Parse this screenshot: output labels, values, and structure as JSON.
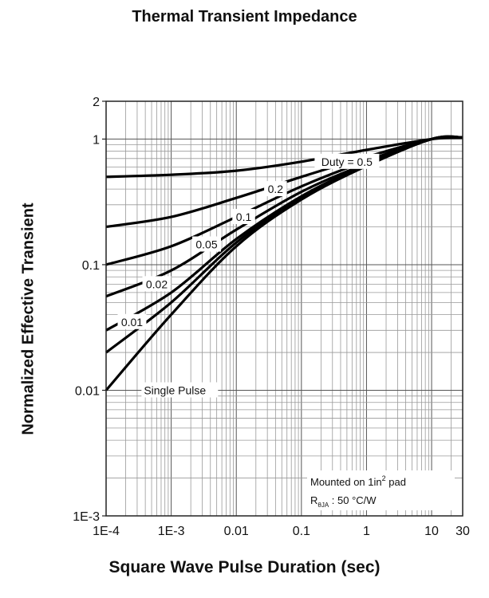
{
  "chart_data": {
    "type": "line",
    "title": "Thermal Transient Impedance",
    "xlabel": "Square Wave Pulse Duration (sec)",
    "ylabel": "Normalized Effective Transient",
    "x_scale": "log",
    "y_scale": "log",
    "xlim": [
      0.0001,
      30
    ],
    "ylim": [
      0.001,
      2
    ],
    "grid": true,
    "x_ticks": [
      {
        "value": 0.0001,
        "label": "1E-4"
      },
      {
        "value": 0.001,
        "label": "1E-3"
      },
      {
        "value": 0.01,
        "label": "0.01"
      },
      {
        "value": 0.1,
        "label": "0.1"
      },
      {
        "value": 1,
        "label": "1"
      },
      {
        "value": 10,
        "label": "10"
      },
      {
        "value": 30,
        "label": "30"
      }
    ],
    "y_ticks": [
      {
        "value": 0.001,
        "label": "1E-3"
      },
      {
        "value": 0.01,
        "label": "0.01"
      },
      {
        "value": 0.1,
        "label": "0.1"
      },
      {
        "value": 1,
        "label": "1"
      },
      {
        "value": 2,
        "label": "2"
      }
    ],
    "series": [
      {
        "name": "Duty = 0.5",
        "x": [
          0.0001,
          0.001,
          0.01,
          0.1,
          1,
          10,
          30
        ],
        "y": [
          0.5,
          0.52,
          0.56,
          0.66,
          0.82,
          1.0,
          1.03
        ]
      },
      {
        "name": "0.2",
        "x": [
          0.0001,
          0.001,
          0.01,
          0.1,
          1,
          10,
          30
        ],
        "y": [
          0.2,
          0.24,
          0.34,
          0.5,
          0.72,
          1.0,
          1.03
        ]
      },
      {
        "name": "0.1",
        "x": [
          0.0001,
          0.001,
          0.01,
          0.1,
          1,
          10,
          30
        ],
        "y": [
          0.1,
          0.14,
          0.24,
          0.42,
          0.67,
          1.0,
          1.03
        ]
      },
      {
        "name": "0.05",
        "x": [
          0.0001,
          0.001,
          0.01,
          0.1,
          1,
          10,
          30
        ],
        "y": [
          0.056,
          0.09,
          0.19,
          0.38,
          0.64,
          1.0,
          1.03
        ]
      },
      {
        "name": "0.02",
        "x": [
          0.0001,
          0.001,
          0.01,
          0.1,
          1,
          10,
          30
        ],
        "y": [
          0.03,
          0.06,
          0.16,
          0.35,
          0.63,
          1.0,
          1.03
        ]
      },
      {
        "name": "0.01",
        "x": [
          0.0001,
          0.001,
          0.01,
          0.1,
          1,
          10,
          30
        ],
        "y": [
          0.02,
          0.05,
          0.15,
          0.34,
          0.62,
          1.0,
          1.03
        ]
      },
      {
        "name": "Single Pulse",
        "x": [
          0.0001,
          0.001,
          0.01,
          0.1,
          1,
          10,
          30
        ],
        "y": [
          0.01,
          0.04,
          0.14,
          0.33,
          0.61,
          1.0,
          1.03
        ]
      }
    ],
    "annotation": {
      "line1_prefix": "Mounted on 1in",
      "line1_sup": "2",
      "line1_suffix": " pad",
      "line2_main": "R",
      "line2_sub": "θJA",
      "line2_value": " : 50 °C/W"
    }
  }
}
